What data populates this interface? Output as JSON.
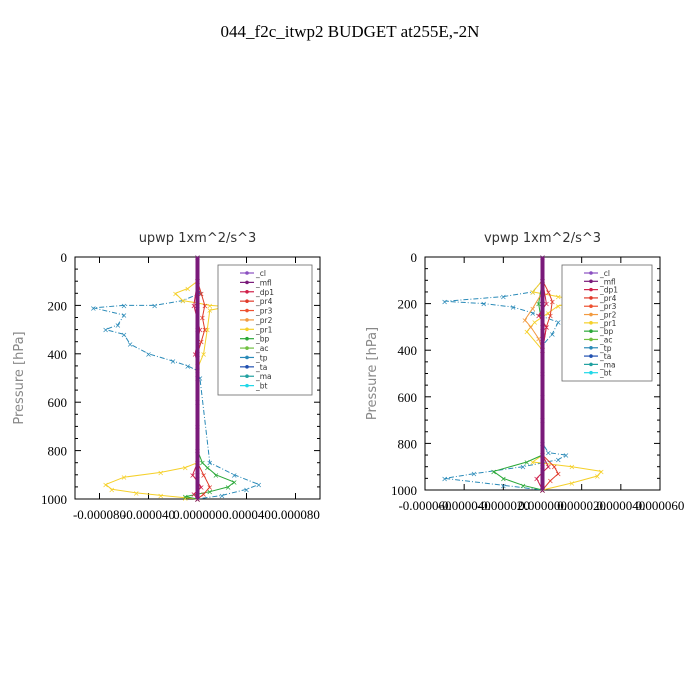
{
  "title": "044_f2c_itwp2  BUDGET at255E,-2N",
  "legend_labels": [
    "_cl",
    "_mfl",
    "_dp1",
    "_pr4",
    "_pr3",
    "_pr2",
    "_pr1",
    "_bp",
    "_ac",
    "_tp",
    "_ta",
    "_ma",
    "_bt"
  ],
  "series_colors": {
    "_cl": "#8a4fc0",
    "_mfl": "#7a1a7a",
    "_dp1": "#d0204a",
    "_pr4": "#e03a2a",
    "_pr3": "#ee5030",
    "_pr2": "#f29a40",
    "_pr1": "#f5d02a",
    "_bp": "#2aa838",
    "_ac": "#70c040",
    "_tp": "#2a8ab8",
    "_ta": "#2050b0",
    "_ma": "#20a0a0",
    "_bt": "#20d8e8"
  },
  "chart_data": [
    {
      "type": "line",
      "title": "upwp   1xm^2/s^3",
      "ylabel": "Pressure [hPa]",
      "xlim": [
        -0.0001,
        0.0001
      ],
      "ylim": [
        1000,
        0
      ],
      "xticks": [
        "-0.000080",
        "-0.000040",
        "0.000000",
        "0.000040",
        "0.000080"
      ],
      "xtick_values": [
        -8e-05,
        -4e-05,
        0,
        4e-05,
        8e-05
      ],
      "yticks": [
        "0",
        "200",
        "400",
        "600",
        "800",
        "1000"
      ],
      "ytick_values": [
        0,
        200,
        400,
        600,
        800,
        1000
      ],
      "legend": "top-right",
      "series": [
        {
          "name": "_tp",
          "x": [
            0,
            2e-06,
            -1.2e-05,
            -3.5e-05,
            -6e-05,
            -8.5e-05,
            -6e-05,
            -6.5e-05,
            -7.5e-05,
            -6e-05,
            -5.5e-05,
            -4e-05,
            -2e-05,
            -8e-06,
            0,
            2e-06,
            1e-05,
            3e-05,
            5e-05,
            4e-05,
            2e-05,
            0
          ],
          "y": [
            100,
            150,
            180,
            200,
            200,
            210,
            240,
            280,
            300,
            320,
            360,
            400,
            430,
            450,
            470,
            500,
            850,
            900,
            940,
            960,
            985,
            1000
          ]
        },
        {
          "name": "_pr1",
          "x": [
            0,
            -8e-06,
            -1.8e-05,
            -1.2e-05,
            0,
            1e-05,
            2.5e-05,
            1e-05,
            8e-06,
            5e-06,
            0,
            0,
            -1e-05,
            -3e-05,
            -6e-05,
            -7.5e-05,
            -7e-05,
            -5e-05,
            -3e-05,
            -1e-05,
            0
          ],
          "y": [
            100,
            130,
            150,
            180,
            190,
            200,
            205,
            220,
            300,
            400,
            460,
            850,
            870,
            890,
            910,
            940,
            960,
            975,
            985,
            995,
            1000
          ]
        },
        {
          "name": "_bp",
          "x": [
            0,
            4e-06,
            8e-06,
            1.5e-05,
            3e-05,
            2.5e-05,
            1e-05,
            -1e-05,
            0
          ],
          "y": [
            800,
            850,
            870,
            900,
            930,
            950,
            970,
            990,
            1000
          ]
        },
        {
          "name": "_pr4",
          "x": [
            0,
            3e-06,
            6e-06,
            4e-06,
            6e-06,
            3e-06,
            0,
            0,
            5e-06,
            1e-05,
            5e-06,
            0
          ],
          "y": [
            100,
            150,
            200,
            250,
            300,
            350,
            400,
            850,
            900,
            950,
            980,
            1000
          ]
        },
        {
          "name": "_dp1",
          "x": [
            0,
            -3e-06,
            2e-06,
            -2e-06,
            0,
            0,
            -4e-06,
            3e-06,
            -3e-06,
            0
          ],
          "y": [
            100,
            200,
            300,
            400,
            450,
            850,
            900,
            950,
            980,
            1000
          ]
        },
        {
          "name": "_mfl",
          "x": [
            0,
            0,
            0,
            0,
            0,
            0,
            0,
            0,
            0,
            0,
            0
          ],
          "y": [
            0,
            100,
            200,
            300,
            400,
            500,
            600,
            700,
            800,
            900,
            1000
          ]
        }
      ]
    },
    {
      "type": "line",
      "title": "vpwp   1xm^2/s^3",
      "ylabel": "Pressure [hPa]",
      "xlim": [
        -6e-05,
        6e-05
      ],
      "ylim": [
        1000,
        0
      ],
      "xticks": [
        "-0.000060",
        "-0.000040",
        "-0.000020",
        "0.000000",
        "0.000020",
        "0.000040",
        "0.000060"
      ],
      "xtick_values": [
        -6e-05,
        -4e-05,
        -2e-05,
        0,
        2e-05,
        4e-05,
        6e-05
      ],
      "yticks": [
        "0",
        "200",
        "400",
        "600",
        "800",
        "1000"
      ],
      "ytick_values": [
        0,
        200,
        400,
        600,
        800,
        1000
      ],
      "legend": "top-right",
      "series": [
        {
          "name": "_tp",
          "x": [
            0,
            -5e-06,
            -2e-05,
            -5e-05,
            -3e-05,
            -1.5e-05,
            -5e-06,
            8e-06,
            5e-06,
            0,
            0,
            3e-06,
            1.2e-05,
            8e-06,
            -1e-05,
            -3.5e-05,
            -5e-05,
            -2e-05,
            0
          ],
          "y": [
            100,
            150,
            170,
            190,
            200,
            215,
            240,
            280,
            330,
            380,
            800,
            840,
            850,
            870,
            900,
            930,
            950,
            980,
            1000
          ]
        },
        {
          "name": "_pr1",
          "x": [
            0,
            -5e-06,
            8e-06,
            2e-05,
            8e-06,
            3e-06,
            -4e-06,
            -8e-06,
            0,
            0,
            -5e-06,
            1.5e-05,
            3e-05,
            2.8e-05,
            1.5e-05,
            0
          ],
          "y": [
            100,
            150,
            170,
            190,
            210,
            240,
            280,
            320,
            400,
            850,
            880,
            900,
            920,
            940,
            970,
            1000
          ]
        },
        {
          "name": "_bp",
          "x": [
            0,
            -2e-06,
            0,
            0,
            -8e-06,
            -2.5e-05,
            -2e-05,
            -1e-05,
            0
          ],
          "y": [
            100,
            200,
            300,
            850,
            880,
            920,
            950,
            980,
            1000
          ]
        },
        {
          "name": "_pr2",
          "x": [
            0,
            -5e-06,
            -9e-06,
            -6e-06,
            -2e-06,
            0
          ],
          "y": [
            150,
            220,
            270,
            300,
            350,
            400
          ]
        },
        {
          "name": "_pr4",
          "x": [
            0,
            3e-06,
            5e-06,
            4e-06,
            2e-06,
            0,
            0,
            6e-06,
            8e-06,
            4e-06,
            0
          ],
          "y": [
            100,
            150,
            190,
            250,
            300,
            400,
            850,
            900,
            930,
            960,
            1000
          ]
        },
        {
          "name": "_dp1",
          "x": [
            0,
            2e-06,
            -2e-06,
            2e-06,
            0,
            0,
            3e-06,
            -3e-06,
            0
          ],
          "y": [
            100,
            200,
            250,
            300,
            400,
            850,
            900,
            950,
            1000
          ]
        },
        {
          "name": "_mfl",
          "x": [
            0,
            0,
            0,
            0,
            0,
            0,
            0,
            0,
            0,
            0,
            0
          ],
          "y": [
            0,
            100,
            200,
            300,
            400,
            500,
            600,
            700,
            800,
            900,
            1000
          ]
        }
      ]
    }
  ]
}
